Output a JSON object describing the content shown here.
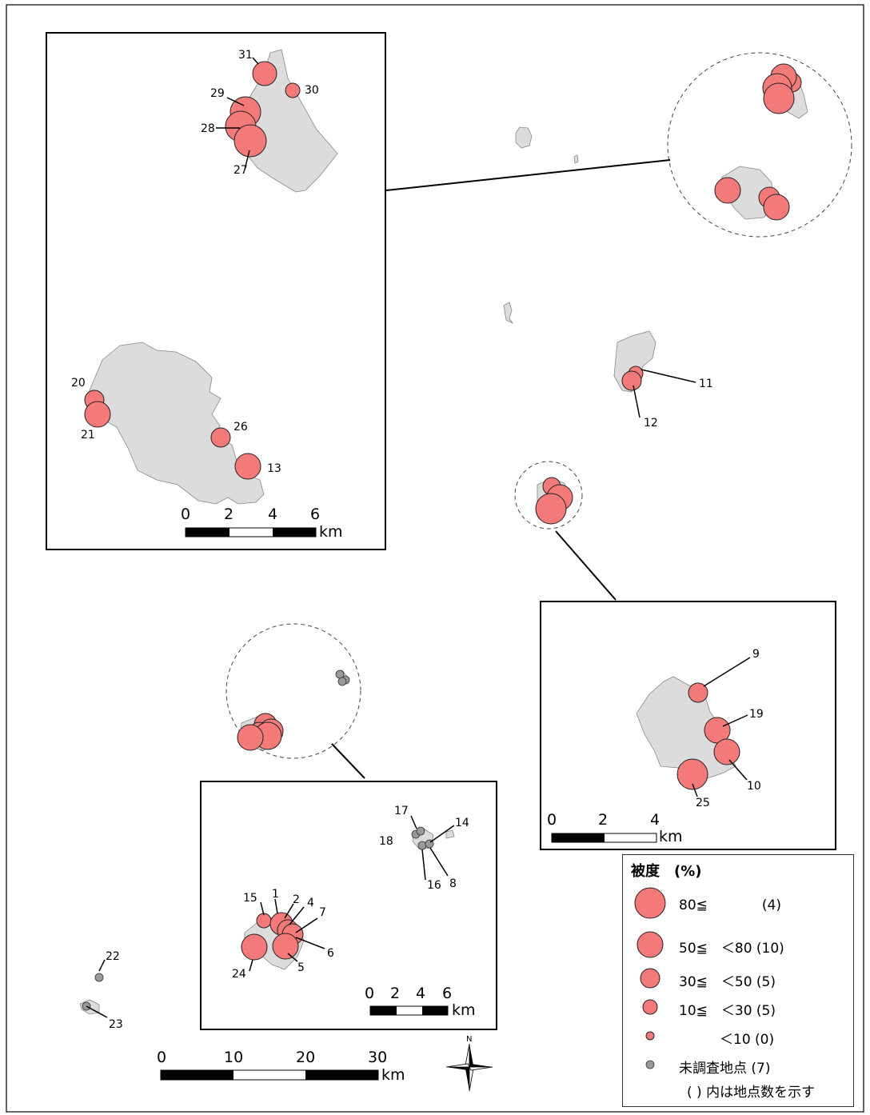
{
  "colors": {
    "site_fill": "#f47a7a",
    "site_stroke": "#222222",
    "unsurveyed_fill": "#999999",
    "land_fill": "#dcdcdc",
    "land_stroke": "#888888"
  },
  "site_labels": {
    "s1": "1",
    "s2": "2",
    "s4": "4",
    "s5": "5",
    "s6": "6",
    "s7": "7",
    "s8": "8",
    "s9": "9",
    "s10": "10",
    "s11": "11",
    "s12": "12",
    "s13": "13",
    "s14": "14",
    "s15": "15",
    "s16": "16",
    "s17": "17",
    "s18": "18",
    "s19": "19",
    "s20": "20",
    "s21": "21",
    "s22": "22",
    "s23": "23",
    "s24": "24",
    "s25": "25",
    "s26": "26",
    "s27": "27",
    "s28": "28",
    "s29": "29",
    "s30": "30",
    "s31": "31"
  },
  "scalebars": {
    "main": {
      "ticks": [
        "0",
        "10",
        "20",
        "30"
      ],
      "unit": "km"
    },
    "inset_north": {
      "ticks": [
        "0",
        "2",
        "4",
        "6"
      ],
      "unit": "km"
    },
    "inset_east": {
      "ticks": [
        "0",
        "2",
        "4"
      ],
      "unit": "km"
    },
    "inset_south": {
      "ticks": [
        "0",
        "2",
        "4",
        "6"
      ],
      "unit": "km"
    }
  },
  "north_arrow_label": "N",
  "legend": {
    "title": "被度　(%)",
    "rows": [
      {
        "label": "80≦　　　　(4)"
      },
      {
        "label": "50≦　＜80 (10)"
      },
      {
        "label": "30≦　＜50 (5)"
      },
      {
        "label": "10≦　＜30 (5)"
      },
      {
        "label": "　　　＜10 (0)"
      },
      {
        "label": "未調査地点 (7)"
      }
    ],
    "note": "( ) 内は地点数を示す"
  }
}
